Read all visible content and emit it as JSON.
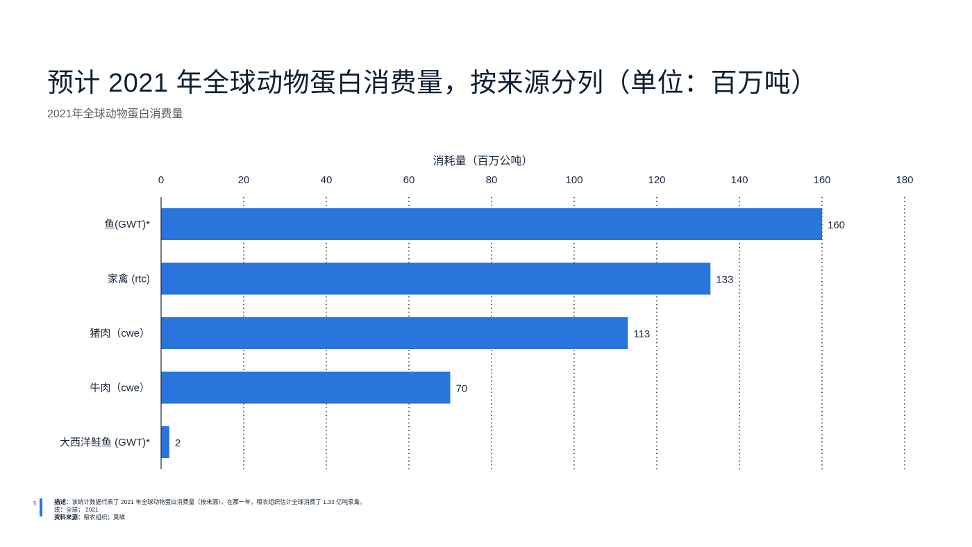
{
  "header": {
    "title": "预计 2021 年全球动物蛋白消费量，按来源分列（单位：百万吨）",
    "subtitle": "2021年全球动物蛋白消费量"
  },
  "chart_data": {
    "type": "bar",
    "orientation": "horizontal",
    "categories": [
      "鱼(GWT)*",
      "家禽 (rtc)",
      "猪肉（cwe）",
      "牛肉（cwe）",
      "大西洋鲑鱼 (GWT)*"
    ],
    "values": [
      160,
      133,
      113,
      70,
      2
    ],
    "value_labels": [
      "160",
      "133",
      "113",
      "70",
      "2"
    ],
    "xlabel": "消耗量（百万公吨）",
    "xlim": [
      0,
      180
    ],
    "xticks": [
      0,
      20,
      40,
      60,
      80,
      100,
      120,
      140,
      160,
      180
    ],
    "x_axis_position": "top",
    "grid": "vertical-dotted",
    "bar_color": "#2a75dc"
  },
  "footer": {
    "page_number": "5",
    "description_label": "描述：",
    "description": "该统计数据代表了 2021 年全球动物蛋白消费量（按来源）。在那一年，粮农组织估计全球消费了 1.33 亿吨家禽。",
    "note_label": "注：",
    "note": "全球； 2021",
    "source_label": "资料来源：",
    "source": "粮农组织；莫维"
  }
}
